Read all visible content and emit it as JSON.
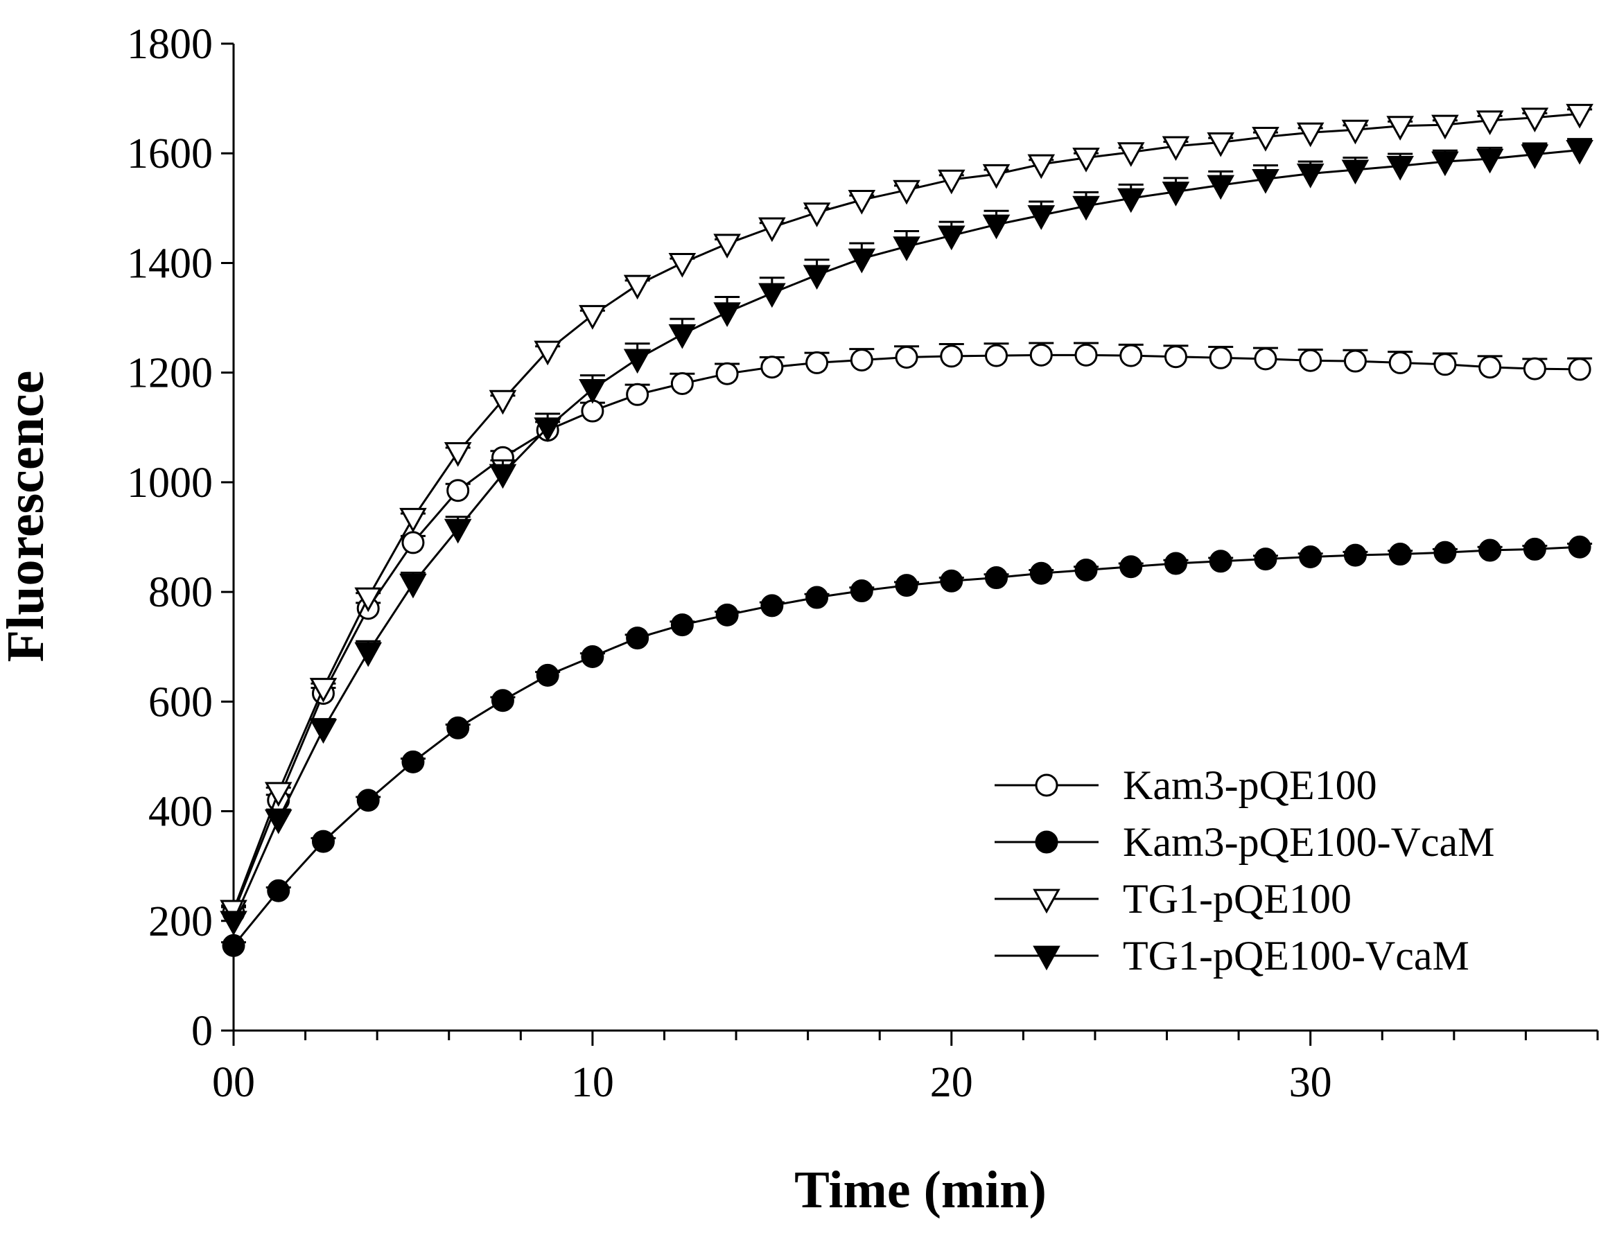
{
  "chart_data": {
    "type": "line",
    "title": "",
    "xlabel": "Time (min)",
    "ylabel": "Fluorescence",
    "xlim": [
      0,
      38
    ],
    "ylim": [
      0,
      1800
    ],
    "xticks": [
      0,
      10,
      20,
      30
    ],
    "xtick_labels": [
      "00",
      "10",
      "20",
      "30"
    ],
    "x_minor_step": 2,
    "yticks": [
      0,
      200,
      400,
      600,
      800,
      1000,
      1200,
      1400,
      1600,
      1800
    ],
    "ytick_labels": [
      "0",
      "200",
      "400",
      "600",
      "800",
      "1000",
      "1200",
      "1400",
      "1600",
      "1800"
    ],
    "grid": false,
    "legend_position": "bottom-right",
    "x": [
      0,
      1.25,
      2.5,
      3.75,
      5,
      6.25,
      7.5,
      8.75,
      10,
      11.25,
      12.5,
      13.75,
      15,
      16.25,
      17.5,
      18.75,
      20,
      21.25,
      22.5,
      23.75,
      25,
      26.25,
      27.5,
      28.75,
      30,
      31.25,
      32.5,
      33.75,
      35,
      36.25,
      37.5
    ],
    "series": [
      {
        "name": "Kam3-pQE100",
        "marker": "circle-open",
        "values": [
          215,
          420,
          615,
          770,
          890,
          985,
          1045,
          1095,
          1130,
          1160,
          1180,
          1198,
          1210,
          1218,
          1223,
          1228,
          1230,
          1231,
          1232,
          1232,
          1231,
          1229,
          1227,
          1225,
          1222,
          1221,
          1218,
          1215,
          1210,
          1207,
          1206
        ],
        "errors": [
          10,
          10,
          10,
          10,
          12,
          12,
          12,
          15,
          15,
          18,
          18,
          18,
          18,
          18,
          20,
          20,
          22,
          22,
          22,
          22,
          20,
          20,
          20,
          20,
          20,
          20,
          20,
          20,
          20,
          18,
          20
        ]
      },
      {
        "name": "Kam3-pQE100-VcaM",
        "marker": "circle-filled",
        "values": [
          155,
          255,
          345,
          420,
          490,
          552,
          602,
          648,
          682,
          716,
          740,
          758,
          775,
          790,
          802,
          812,
          820,
          826,
          834,
          840,
          846,
          852,
          856,
          860,
          864,
          867,
          869,
          872,
          876,
          878,
          882
        ],
        "errors": [
          6,
          6,
          6,
          6,
          6,
          6,
          6,
          6,
          6,
          6,
          6,
          6,
          6,
          6,
          6,
          6,
          6,
          6,
          6,
          6,
          6,
          6,
          6,
          6,
          6,
          6,
          6,
          6,
          6,
          6,
          6
        ]
      },
      {
        "name": "TG1-pQE100",
        "marker": "triangle-down-open",
        "values": [
          220,
          435,
          625,
          790,
          935,
          1055,
          1150,
          1240,
          1305,
          1360,
          1400,
          1435,
          1465,
          1492,
          1515,
          1533,
          1552,
          1562,
          1580,
          1592,
          1602,
          1613,
          1620,
          1630,
          1638,
          1643,
          1650,
          1652,
          1660,
          1665,
          1672
        ],
        "errors": [
          8,
          8,
          8,
          8,
          8,
          8,
          8,
          8,
          8,
          8,
          8,
          8,
          8,
          8,
          8,
          8,
          8,
          8,
          8,
          8,
          8,
          8,
          8,
          8,
          8,
          8,
          8,
          8,
          8,
          8,
          8
        ]
      },
      {
        "name": "TG1-pQE100-VcaM",
        "marker": "triangle-down-filled",
        "values": [
          200,
          385,
          550,
          690,
          815,
          915,
          1015,
          1100,
          1170,
          1225,
          1270,
          1310,
          1345,
          1378,
          1408,
          1430,
          1450,
          1470,
          1487,
          1504,
          1518,
          1530,
          1542,
          1553,
          1563,
          1570,
          1577,
          1585,
          1590,
          1598,
          1606
        ],
        "errors": [
          15,
          18,
          18,
          20,
          20,
          22,
          25,
          25,
          25,
          28,
          28,
          28,
          28,
          28,
          28,
          28,
          25,
          25,
          25,
          25,
          25,
          25,
          25,
          25,
          22,
          22,
          22,
          20,
          20,
          20,
          20
        ]
      }
    ]
  }
}
